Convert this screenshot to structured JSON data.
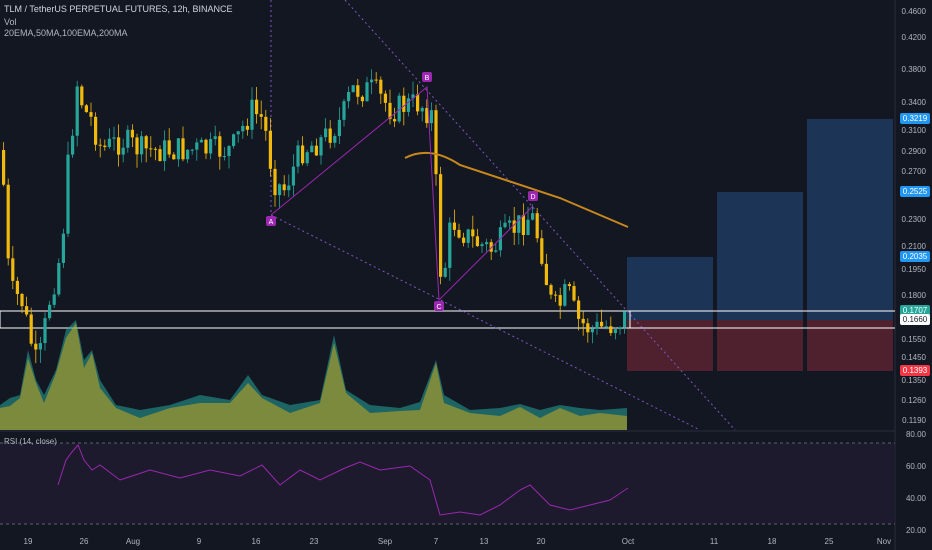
{
  "header": {
    "title": "TLM / TetherUS PERPETUAL FUTURES, 12h, BINANCE",
    "volume_label": "Vol",
    "ema_label": "20EMA,50MA,100EMA,200MA"
  },
  "price_axis": [
    "0.4600",
    "0.4200",
    "0.3800",
    "0.3400",
    "0.3100",
    "0.2900",
    "0.2700",
    "0.2300",
    "0.2100",
    "0.1950",
    "0.1800",
    "0.1550",
    "0.1450",
    "0.1350",
    "0.1260",
    "0.1190"
  ],
  "price_tags": [
    {
      "value": "0.3219",
      "color": "#2196f3"
    },
    {
      "value": "0.2525",
      "color": "#2196f3"
    },
    {
      "value": "0.2035",
      "color": "#2196f3"
    },
    {
      "value": "0.1707",
      "color": "#26a69a"
    },
    {
      "value": "0.1660",
      "color": "#ffffff"
    },
    {
      "value": "0.1393",
      "color": "#f23645"
    }
  ],
  "time_axis": [
    "19",
    "26",
    "Aug",
    "9",
    "16",
    "23",
    "Sep",
    "7",
    "13",
    "20",
    "Oct",
    "11",
    "18",
    "25",
    "Nov"
  ],
  "pattern_points": [
    "A",
    "B",
    "C",
    "D"
  ],
  "rsi": {
    "label": "RSI (14, close)",
    "axis": [
      "80.00",
      "60.00",
      "40.00",
      "20.00"
    ]
  },
  "colors": {
    "background": "#131722",
    "up": "#26a69a",
    "down": "#f0b90b",
    "pattern": "#9c27b0",
    "ema": "#c8871d",
    "target": "#1e3a5f",
    "stop": "#5a2230"
  }
}
